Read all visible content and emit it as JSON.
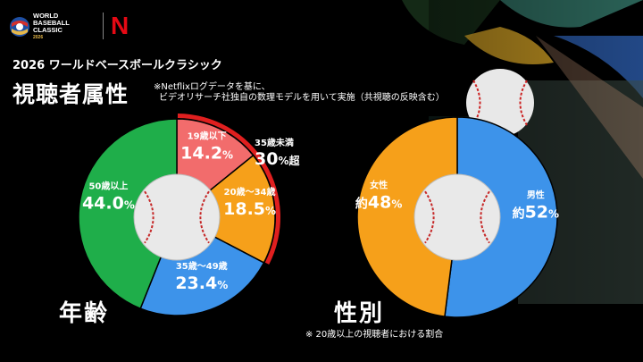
{
  "header": {
    "logo_lines": [
      "WORLD",
      "BASEBALL",
      "CLASSIC"
    ],
    "logo_year": "2026",
    "netflix_mark": "N",
    "subtitle": "2026 ワールドベースボールクラシック",
    "title": "視聴者属性",
    "note_line1": "※Netflixログデータを基に、",
    "note_line2": "ビデオリサーチ社独自の数理モデルを用いて実施（共視聴の反映含む）"
  },
  "age": {
    "title": "年齢",
    "bracket_label": "35歳未満",
    "bracket_value": "30",
    "bracket_unit": "%超"
  },
  "gender": {
    "title": "性別",
    "footnote": "※ 20歳以上の視聴者における割合"
  },
  "chart_data": [
    {
      "type": "pie",
      "title": "年齢",
      "categories": [
        "19歳以下",
        "20歳～34歳",
        "35歳～49歳",
        "50歳以上"
      ],
      "values": [
        14.2,
        18.5,
        23.4,
        44.0
      ],
      "value_labels": [
        "14.2",
        "18.5",
        "23.4",
        "44.0"
      ],
      "colors": [
        "#f26c6c",
        "#f6a01a",
        "#3d93ea",
        "#1fae4a"
      ],
      "unit": "%",
      "annotation": "35歳未満 30%超"
    },
    {
      "type": "pie",
      "title": "性別",
      "categories": [
        "男性",
        "女性"
      ],
      "values": [
        52,
        48
      ],
      "value_labels": [
        "52",
        "48"
      ],
      "prefix": "約",
      "colors": [
        "#3d93ea",
        "#f6a01a"
      ],
      "unit": "%"
    }
  ]
}
